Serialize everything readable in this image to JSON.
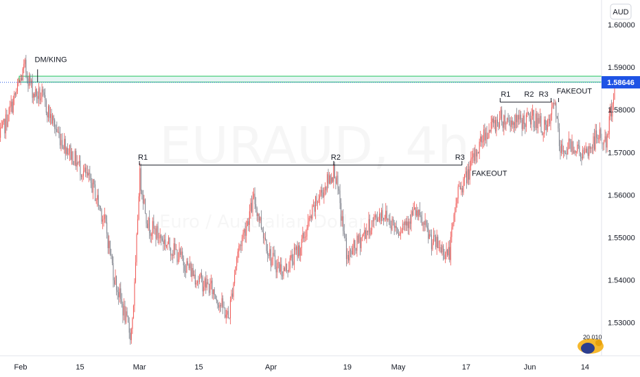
{
  "currency_label": "AUD",
  "current_price_label": "1.58646",
  "watermark": {
    "symbol": "EURAUD, 4h",
    "description": "Euro / Australian Dollar"
  },
  "badge_text": "20 010",
  "colors": {
    "up": "#ef5350",
    "down": "#787b86",
    "price_tag": "#1e53e5",
    "zone": "#26a69a",
    "level_line": "#131722"
  },
  "chart_data": {
    "type": "candlestick",
    "ylim": [
      1.5222,
      1.6058
    ],
    "x_tick_labels": [
      "Feb",
      "15",
      "Mar",
      "15",
      "Apr",
      "19",
      "May",
      "17",
      "Jun",
      "14"
    ],
    "y_tick_labels": [
      "1.60000",
      "1.59000",
      "1.58000",
      "1.57000",
      "1.56000",
      "1.55000",
      "1.54000",
      "1.53000"
    ],
    "anchors": [
      {
        "x": "Jan 27",
        "y": 1.573
      },
      {
        "x": "Jan 31",
        "y": 1.584
      },
      {
        "x": "Feb 2",
        "y": 1.59
      },
      {
        "x": "Feb 4",
        "y": 1.584
      },
      {
        "x": "Feb 6",
        "y": 1.583
      },
      {
        "x": "Feb 10",
        "y": 1.574
      },
      {
        "x": "Feb 14",
        "y": 1.568
      },
      {
        "x": "Feb 18",
        "y": 1.562
      },
      {
        "x": "Feb 21",
        "y": 1.553
      },
      {
        "x": "Feb 23",
        "y": 1.541
      },
      {
        "x": "Feb 26",
        "y": 1.53
      },
      {
        "x": "Feb 27",
        "y": 1.527
      },
      {
        "x": "Feb 28",
        "y": 1.54
      },
      {
        "x": "Mar 1",
        "y": 1.565
      },
      {
        "x": "Mar 3",
        "y": 1.553
      },
      {
        "x": "Mar 7",
        "y": 1.549
      },
      {
        "x": "Mar 10",
        "y": 1.546
      },
      {
        "x": "Mar 15",
        "y": 1.54
      },
      {
        "x": "Mar 18",
        "y": 1.538
      },
      {
        "x": "Mar 22",
        "y": 1.531
      },
      {
        "x": "Mar 24",
        "y": 1.546
      },
      {
        "x": "Mar 28",
        "y": 1.559
      },
      {
        "x": "Apr 1",
        "y": 1.545
      },
      {
        "x": "Apr 4",
        "y": 1.542
      },
      {
        "x": "Apr 8",
        "y": 1.548
      },
      {
        "x": "Apr 12",
        "y": 1.559
      },
      {
        "x": "Apr 16",
        "y": 1.566
      },
      {
        "x": "Apr 19",
        "y": 1.545
      },
      {
        "x": "Apr 23",
        "y": 1.551
      },
      {
        "x": "Apr 27",
        "y": 1.556
      },
      {
        "x": "May 1",
        "y": 1.552
      },
      {
        "x": "May 5",
        "y": 1.556
      },
      {
        "x": "May 9",
        "y": 1.549
      },
      {
        "x": "May 13",
        "y": 1.546
      },
      {
        "x": "May 15",
        "y": 1.561
      },
      {
        "x": "May 17",
        "y": 1.564
      },
      {
        "x": "May 21",
        "y": 1.574
      },
      {
        "x": "May 25",
        "y": 1.578
      },
      {
        "x": "May 29",
        "y": 1.577
      },
      {
        "x": "Jun 2",
        "y": 1.578
      },
      {
        "x": "Jun 5",
        "y": 1.575
      },
      {
        "x": "Jun 7",
        "y": 1.582
      },
      {
        "x": "Jun 8",
        "y": 1.57
      },
      {
        "x": "Jun 11",
        "y": 1.572
      },
      {
        "x": "Jun 14",
        "y": 1.569
      },
      {
        "x": "Jun 17",
        "y": 1.574
      },
      {
        "x": "Jun 19",
        "y": 1.572
      },
      {
        "x": "Jun 21",
        "y": 1.586
      }
    ],
    "resistance_zone": [
      1.5865,
      1.5879
    ],
    "levels": [
      {
        "price": 1.567,
        "from": "Mar 1",
        "to": "May 16",
        "labels": [
          "R1",
          "R2",
          "R3"
        ]
      },
      {
        "price": 1.5818,
        "from": "May 25",
        "to": "Jun 6",
        "labels": [
          "R1",
          "R2",
          "R3"
        ]
      }
    ],
    "annotations": [
      {
        "text": "DM/KING",
        "x": "Feb 4",
        "y": 1.5912
      },
      {
        "text": "FAKEOUT",
        "x": "May 18",
        "y": 1.5645
      },
      {
        "text": "FAKEOUT",
        "x": "Jun 7",
        "y": 1.5838
      }
    ]
  }
}
